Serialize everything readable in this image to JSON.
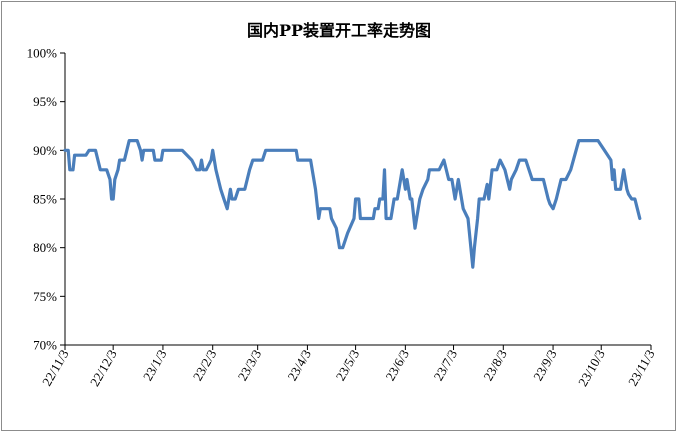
{
  "chart_data": {
    "type": "line",
    "title": "国内PP装置开工率走势图",
    "xlabel": "",
    "ylabel": "",
    "ylim": [
      70,
      100
    ],
    "y_ticks": [
      "70%",
      "75%",
      "80%",
      "85%",
      "90%",
      "95%",
      "100%"
    ],
    "x_tick_labels": [
      "22/11/3",
      "22/12/3",
      "23/1/3",
      "23/2/3",
      "23/3/3",
      "23/4/3",
      "23/5/3",
      "23/6/3",
      "23/7/3",
      "23/8/3",
      "23/9/3",
      "23/10/3",
      "23/11/3"
    ],
    "grid": false,
    "legend": "none",
    "line_color": "#4a7ebb",
    "series": [
      {
        "points": [
          [
            "2022-11-03",
            90
          ],
          [
            "2022-11-05",
            90
          ],
          [
            "2022-11-06",
            88
          ],
          [
            "2022-11-08",
            88
          ],
          [
            "2022-11-09",
            89.5
          ],
          [
            "2022-11-16",
            89.5
          ],
          [
            "2022-11-18",
            90
          ],
          [
            "2022-11-22",
            90
          ],
          [
            "2022-11-25",
            88
          ],
          [
            "2022-11-29",
            88
          ],
          [
            "2022-12-01",
            87
          ],
          [
            "2022-12-02",
            85
          ],
          [
            "2022-12-03",
            85
          ],
          [
            "2022-12-04",
            87
          ],
          [
            "2022-12-06",
            88
          ],
          [
            "2022-12-07",
            89
          ],
          [
            "2022-12-10",
            89
          ],
          [
            "2022-12-13",
            91
          ],
          [
            "2022-12-18",
            91
          ],
          [
            "2022-12-20",
            90
          ],
          [
            "2022-12-21",
            89
          ],
          [
            "2022-12-22",
            90
          ],
          [
            "2022-12-28",
            90
          ],
          [
            "2022-12-29",
            89
          ],
          [
            "2023-01-02",
            89
          ],
          [
            "2023-01-03",
            90
          ],
          [
            "2023-01-15",
            90
          ],
          [
            "2023-01-21",
            89
          ],
          [
            "2023-01-24",
            88
          ],
          [
            "2023-01-26",
            88
          ],
          [
            "2023-01-27",
            89
          ],
          [
            "2023-01-28",
            88
          ],
          [
            "2023-01-30",
            88
          ],
          [
            "2023-02-02",
            89
          ],
          [
            "2023-02-03",
            90
          ],
          [
            "2023-02-05",
            88
          ],
          [
            "2023-02-08",
            86
          ],
          [
            "2023-02-09",
            85.5
          ],
          [
            "2023-02-10",
            85
          ],
          [
            "2023-02-12",
            84
          ],
          [
            "2023-02-14",
            86
          ],
          [
            "2023-02-15",
            85
          ],
          [
            "2023-02-17",
            85
          ],
          [
            "2023-02-19",
            86
          ],
          [
            "2023-02-23",
            86
          ],
          [
            "2023-02-26",
            88
          ],
          [
            "2023-02-28",
            89
          ],
          [
            "2023-03-06",
            89
          ],
          [
            "2023-03-08",
            90
          ],
          [
            "2023-03-27",
            90
          ],
          [
            "2023-03-28",
            89
          ],
          [
            "2023-04-05",
            89
          ],
          [
            "2023-04-08",
            86
          ],
          [
            "2023-04-10",
            83
          ],
          [
            "2023-04-11",
            84
          ],
          [
            "2023-04-17",
            84
          ],
          [
            "2023-04-18",
            83
          ],
          [
            "2023-04-21",
            82
          ],
          [
            "2023-04-23",
            80
          ],
          [
            "2023-04-25",
            80
          ],
          [
            "2023-04-28",
            81.5
          ],
          [
            "2023-05-02",
            83
          ],
          [
            "2023-05-03",
            85
          ],
          [
            "2023-05-05",
            85
          ],
          [
            "2023-05-06",
            83
          ],
          [
            "2023-05-14",
            83
          ],
          [
            "2023-05-15",
            84
          ],
          [
            "2023-05-17",
            84
          ],
          [
            "2023-05-18",
            85
          ],
          [
            "2023-05-20",
            85
          ],
          [
            "2023-05-21",
            88
          ],
          [
            "2023-05-22",
            83
          ],
          [
            "2023-05-25",
            83
          ],
          [
            "2023-05-27",
            85
          ],
          [
            "2023-05-29",
            85
          ],
          [
            "2023-06-01",
            88
          ],
          [
            "2023-06-03",
            86
          ],
          [
            "2023-06-04",
            87
          ],
          [
            "2023-06-06",
            85
          ],
          [
            "2023-06-07",
            85
          ],
          [
            "2023-06-09",
            82
          ],
          [
            "2023-06-10",
            83
          ],
          [
            "2023-06-12",
            85
          ],
          [
            "2023-06-14",
            86
          ],
          [
            "2023-06-17",
            87
          ],
          [
            "2023-06-18",
            88
          ],
          [
            "2023-06-24",
            88
          ],
          [
            "2023-06-27",
            89
          ],
          [
            "2023-06-30",
            87
          ],
          [
            "2023-07-02",
            87
          ],
          [
            "2023-07-04",
            85
          ],
          [
            "2023-07-06",
            87
          ],
          [
            "2023-07-09",
            84
          ],
          [
            "2023-07-12",
            83
          ],
          [
            "2023-07-15",
            78
          ],
          [
            "2023-07-16",
            80
          ],
          [
            "2023-07-18",
            83
          ],
          [
            "2023-07-19",
            85
          ],
          [
            "2023-07-22",
            85
          ],
          [
            "2023-07-24",
            86.5
          ],
          [
            "2023-07-25",
            85
          ],
          [
            "2023-07-27",
            88
          ],
          [
            "2023-07-30",
            88
          ],
          [
            "2023-08-01",
            89
          ],
          [
            "2023-08-04",
            88
          ],
          [
            "2023-08-07",
            86
          ],
          [
            "2023-08-08",
            87
          ],
          [
            "2023-08-11",
            88
          ],
          [
            "2023-08-13",
            89
          ],
          [
            "2023-08-17",
            89
          ],
          [
            "2023-08-19",
            88
          ],
          [
            "2023-08-21",
            87
          ],
          [
            "2023-08-28",
            87
          ],
          [
            "2023-08-31",
            85
          ],
          [
            "2023-09-01",
            84.5
          ],
          [
            "2023-09-03",
            84
          ],
          [
            "2023-09-05",
            85
          ],
          [
            "2023-09-08",
            87
          ],
          [
            "2023-09-11",
            87
          ],
          [
            "2023-09-14",
            88
          ],
          [
            "2023-09-19",
            91
          ],
          [
            "2023-09-26",
            91
          ],
          [
            "2023-10-01",
            91
          ],
          [
            "2023-10-05",
            90
          ],
          [
            "2023-10-09",
            89
          ],
          [
            "2023-10-10",
            87
          ],
          [
            "2023-10-11",
            88
          ],
          [
            "2023-10-12",
            86
          ],
          [
            "2023-10-15",
            86
          ],
          [
            "2023-10-17",
            88
          ],
          [
            "2023-10-19",
            86
          ],
          [
            "2023-10-20",
            85.5
          ],
          [
            "2023-10-22",
            85
          ],
          [
            "2023-10-24",
            85
          ],
          [
            "2023-10-27",
            83
          ]
        ]
      }
    ]
  }
}
